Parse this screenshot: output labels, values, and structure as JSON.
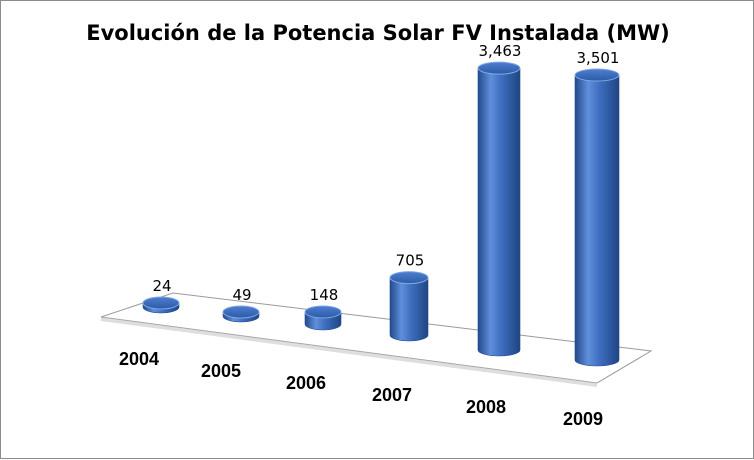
{
  "chart_data": {
    "type": "bar",
    "title": "Evolución de la Potencia Solar FV Instalada (MW)",
    "categories": [
      "2004",
      "2005",
      "2006",
      "2007",
      "2008",
      "2009"
    ],
    "values": [
      24,
      49,
      148,
      705,
      3463,
      3501
    ],
    "value_labels": [
      "24",
      "49",
      "148",
      "705",
      "3,463",
      "3,501"
    ],
    "xlabel": "",
    "ylabel": "",
    "ylim": [
      0,
      3600
    ],
    "grid": false,
    "legend": "none",
    "colors": {
      "bar": "#3e6fc0",
      "bar_light": "#7fa8e6",
      "bar_dark": "#234a8c",
      "floor": "#ffffff",
      "floor_edge": "#9a9a9a"
    }
  }
}
